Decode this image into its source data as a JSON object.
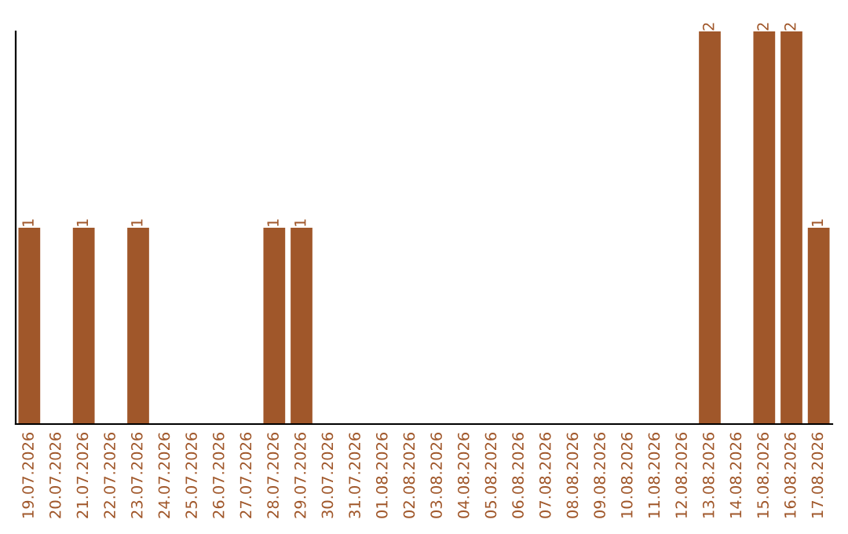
{
  "chart_data": {
    "type": "bar",
    "categories": [
      "19.07.2026",
      "20.07.2026",
      "21.07.2026",
      "22.07.2026",
      "23.07.2026",
      "24.07.2026",
      "25.07.2026",
      "26.07.2026",
      "27.07.2026",
      "28.07.2026",
      "29.07.2026",
      "30.07.2026",
      "31.07.2026",
      "01.08.2026",
      "02.08.2026",
      "03.08.2026",
      "04.08.2026",
      "05.08.2026",
      "06.08.2026",
      "07.08.2026",
      "08.08.2026",
      "09.08.2026",
      "10.08.2026",
      "11.08.2026",
      "12.08.2026",
      "13.08.2026",
      "14.08.2026",
      "15.08.2026",
      "16.08.2026",
      "17.08.2026"
    ],
    "values": [
      1,
      0,
      1,
      0,
      1,
      0,
      0,
      0,
      0,
      1,
      1,
      0,
      0,
      0,
      0,
      0,
      0,
      0,
      0,
      0,
      0,
      0,
      0,
      0,
      0,
      2,
      0,
      2,
      2,
      1
    ],
    "value_labels": [
      "1",
      null,
      "1",
      null,
      "1",
      null,
      null,
      null,
      null,
      "1",
      "1",
      null,
      null,
      null,
      null,
      null,
      null,
      null,
      null,
      null,
      null,
      null,
      null,
      null,
      null,
      "2",
      null,
      "2",
      "2",
      "1"
    ],
    "color": "#a0572a",
    "ylim": [
      0,
      2
    ],
    "tick_labels": "x",
    "grid": false,
    "legend": false
  }
}
